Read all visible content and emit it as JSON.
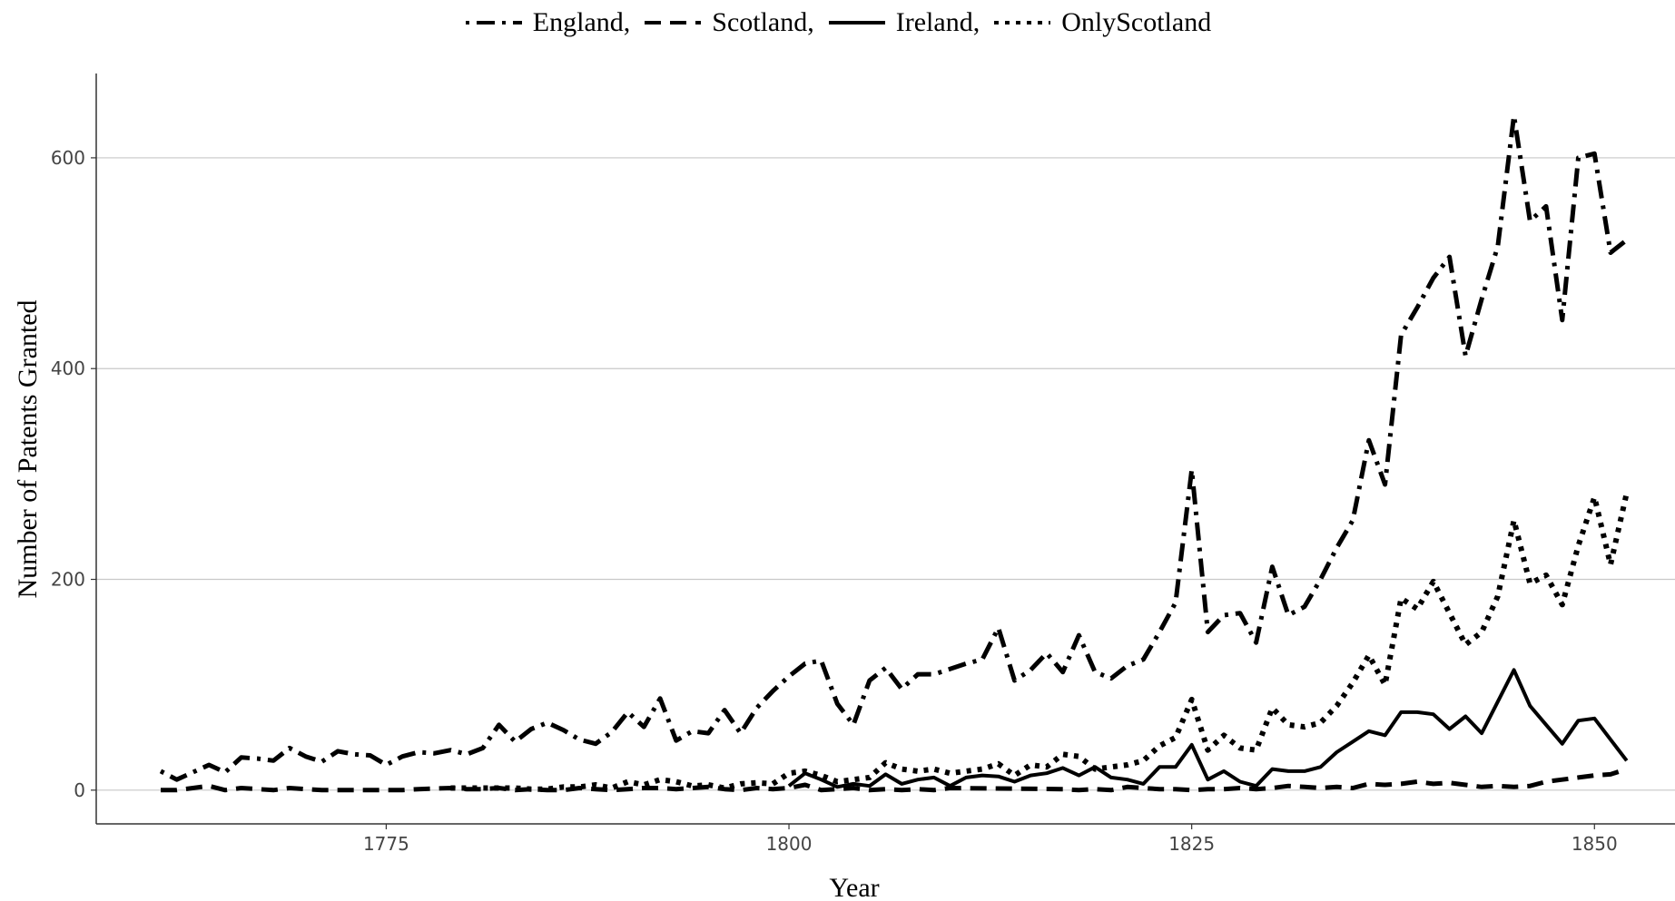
{
  "chart_data": {
    "type": "line",
    "xlabel": "Year",
    "ylabel": "Number of Patents Granted",
    "xlim": [
      1757,
      1855
    ],
    "ylim": [
      -32,
      680
    ],
    "xticks": [
      1775,
      1800,
      1825,
      1850
    ],
    "yticks": [
      0,
      200,
      400,
      600
    ],
    "grid": "horizontal major",
    "legend_position": "top",
    "series": [
      {
        "name": "England,",
        "dash": "dotdash",
        "points": [
          [
            1761,
            18
          ],
          [
            1762,
            10
          ],
          [
            1763,
            17
          ],
          [
            1764,
            24
          ],
          [
            1765,
            17
          ],
          [
            1766,
            31
          ],
          [
            1767,
            30
          ],
          [
            1768,
            28
          ],
          [
            1769,
            40
          ],
          [
            1770,
            32
          ],
          [
            1771,
            27
          ],
          [
            1772,
            37
          ],
          [
            1773,
            34
          ],
          [
            1774,
            33
          ],
          [
            1775,
            24
          ],
          [
            1776,
            32
          ],
          [
            1777,
            36
          ],
          [
            1778,
            35
          ],
          [
            1779,
            38
          ],
          [
            1780,
            34
          ],
          [
            1781,
            40
          ],
          [
            1782,
            62
          ],
          [
            1783,
            46
          ],
          [
            1784,
            58
          ],
          [
            1785,
            64
          ],
          [
            1786,
            57
          ],
          [
            1787,
            48
          ],
          [
            1788,
            44
          ],
          [
            1789,
            55
          ],
          [
            1790,
            74
          ],
          [
            1791,
            60
          ],
          [
            1792,
            87
          ],
          [
            1793,
            47
          ],
          [
            1794,
            56
          ],
          [
            1795,
            54
          ],
          [
            1796,
            76
          ],
          [
            1797,
            54
          ],
          [
            1798,
            78
          ],
          [
            1799,
            94
          ],
          [
            1800,
            108
          ],
          [
            1801,
            120
          ],
          [
            1802,
            123
          ],
          [
            1803,
            82
          ],
          [
            1804,
            62
          ],
          [
            1805,
            104
          ],
          [
            1806,
            116
          ],
          [
            1807,
            96
          ],
          [
            1808,
            110
          ],
          [
            1809,
            110
          ],
          [
            1810,
            115
          ],
          [
            1811,
            120
          ],
          [
            1812,
            124
          ],
          [
            1813,
            154
          ],
          [
            1814,
            104
          ],
          [
            1815,
            114
          ],
          [
            1816,
            130
          ],
          [
            1817,
            112
          ],
          [
            1818,
            147
          ],
          [
            1819,
            112
          ],
          [
            1820,
            106
          ],
          [
            1821,
            118
          ],
          [
            1822,
            124
          ],
          [
            1823,
            150
          ],
          [
            1824,
            178
          ],
          [
            1825,
            304
          ],
          [
            1826,
            150
          ],
          [
            1827,
            166
          ],
          [
            1828,
            168
          ],
          [
            1829,
            140
          ],
          [
            1830,
            212
          ],
          [
            1831,
            166
          ],
          [
            1832,
            174
          ],
          [
            1833,
            200
          ],
          [
            1834,
            230
          ],
          [
            1835,
            256
          ],
          [
            1836,
            332
          ],
          [
            1837,
            290
          ],
          [
            1838,
            432
          ],
          [
            1839,
            458
          ],
          [
            1840,
            486
          ],
          [
            1841,
            506
          ],
          [
            1842,
            412
          ],
          [
            1843,
            466
          ],
          [
            1844,
            516
          ],
          [
            1845,
            640
          ],
          [
            1846,
            540
          ],
          [
            1847,
            554
          ],
          [
            1848,
            446
          ],
          [
            1849,
            600
          ],
          [
            1850,
            604
          ],
          [
            1851,
            510
          ],
          [
            1852,
            522
          ]
        ]
      },
      {
        "name": "Scotland,",
        "dash": "dashed",
        "points": [
          [
            1761,
            0
          ],
          [
            1762,
            0
          ],
          [
            1764,
            4
          ],
          [
            1765,
            0
          ],
          [
            1766,
            2
          ],
          [
            1768,
            0
          ],
          [
            1769,
            2
          ],
          [
            1770,
            1
          ],
          [
            1771,
            0
          ],
          [
            1775,
            0
          ],
          [
            1776,
            0
          ],
          [
            1777,
            1
          ],
          [
            1779,
            2
          ],
          [
            1780,
            1
          ],
          [
            1781,
            1
          ],
          [
            1782,
            2
          ],
          [
            1783,
            0
          ],
          [
            1784,
            1
          ],
          [
            1785,
            0
          ],
          [
            1786,
            0
          ],
          [
            1787,
            2
          ],
          [
            1788,
            1
          ],
          [
            1789,
            0
          ],
          [
            1790,
            1
          ],
          [
            1791,
            2
          ],
          [
            1792,
            2
          ],
          [
            1793,
            1
          ],
          [
            1794,
            2
          ],
          [
            1795,
            3
          ],
          [
            1796,
            1
          ],
          [
            1797,
            0
          ],
          [
            1798,
            2
          ],
          [
            1799,
            1
          ],
          [
            1800,
            2
          ],
          [
            1801,
            5
          ],
          [
            1802,
            0
          ],
          [
            1803,
            1
          ],
          [
            1804,
            2
          ],
          [
            1805,
            0
          ],
          [
            1806,
            1
          ],
          [
            1807,
            0
          ],
          [
            1808,
            1
          ],
          [
            1809,
            0
          ],
          [
            1810,
            2
          ],
          [
            1817,
            1
          ],
          [
            1818,
            0
          ],
          [
            1819,
            1
          ],
          [
            1820,
            0
          ],
          [
            1821,
            3
          ],
          [
            1822,
            2
          ],
          [
            1823,
            1
          ],
          [
            1824,
            1
          ],
          [
            1825,
            0
          ],
          [
            1826,
            1
          ],
          [
            1827,
            1
          ],
          [
            1828,
            2
          ],
          [
            1829,
            1
          ],
          [
            1830,
            2
          ],
          [
            1831,
            4
          ],
          [
            1832,
            3
          ],
          [
            1833,
            2
          ],
          [
            1834,
            3
          ],
          [
            1835,
            2
          ],
          [
            1836,
            6
          ],
          [
            1837,
            5
          ],
          [
            1838,
            6
          ],
          [
            1839,
            8
          ],
          [
            1840,
            6
          ],
          [
            1841,
            7
          ],
          [
            1842,
            5
          ],
          [
            1843,
            3
          ],
          [
            1844,
            4
          ],
          [
            1845,
            3
          ],
          [
            1846,
            4
          ],
          [
            1847,
            8
          ],
          [
            1848,
            10
          ],
          [
            1849,
            12
          ],
          [
            1850,
            14
          ],
          [
            1851,
            15
          ],
          [
            1852,
            20
          ]
        ]
      },
      {
        "name": "Ireland,",
        "dash": "solid",
        "points": [
          [
            1800,
            4
          ],
          [
            1801,
            16
          ],
          [
            1802,
            10
          ],
          [
            1803,
            3
          ],
          [
            1804,
            6
          ],
          [
            1805,
            4
          ],
          [
            1806,
            15
          ],
          [
            1807,
            6
          ],
          [
            1808,
            10
          ],
          [
            1809,
            12
          ],
          [
            1810,
            4
          ],
          [
            1811,
            12
          ],
          [
            1812,
            14
          ],
          [
            1813,
            13
          ],
          [
            1814,
            8
          ],
          [
            1815,
            14
          ],
          [
            1816,
            16
          ],
          [
            1817,
            21
          ],
          [
            1818,
            14
          ],
          [
            1819,
            22
          ],
          [
            1820,
            12
          ],
          [
            1821,
            10
          ],
          [
            1822,
            6
          ],
          [
            1823,
            22
          ],
          [
            1824,
            22
          ],
          [
            1825,
            43
          ],
          [
            1826,
            10
          ],
          [
            1827,
            18
          ],
          [
            1828,
            8
          ],
          [
            1829,
            4
          ],
          [
            1830,
            20
          ],
          [
            1831,
            18
          ],
          [
            1832,
            18
          ],
          [
            1833,
            22
          ],
          [
            1834,
            36
          ],
          [
            1835,
            46
          ],
          [
            1836,
            56
          ],
          [
            1837,
            52
          ],
          [
            1838,
            74
          ],
          [
            1839,
            74
          ],
          [
            1840,
            72
          ],
          [
            1841,
            58
          ],
          [
            1842,
            70
          ],
          [
            1843,
            54
          ],
          [
            1844,
            84
          ],
          [
            1845,
            114
          ],
          [
            1846,
            80
          ],
          [
            1847,
            62
          ],
          [
            1848,
            44
          ],
          [
            1849,
            66
          ],
          [
            1850,
            68
          ],
          [
            1851,
            48
          ],
          [
            1852,
            28
          ]
        ]
      },
      {
        "name": "OnlyScotland",
        "dash": "dotted",
        "points": [
          [
            1779,
            2
          ],
          [
            1780,
            2
          ],
          [
            1781,
            2
          ],
          [
            1782,
            2
          ],
          [
            1783,
            2
          ],
          [
            1784,
            1
          ],
          [
            1785,
            1
          ],
          [
            1786,
            3
          ],
          [
            1787,
            3
          ],
          [
            1788,
            5
          ],
          [
            1789,
            2
          ],
          [
            1790,
            8
          ],
          [
            1791,
            5
          ],
          [
            1792,
            10
          ],
          [
            1793,
            8
          ],
          [
            1794,
            4
          ],
          [
            1795,
            5
          ],
          [
            1796,
            2
          ],
          [
            1797,
            6
          ],
          [
            1798,
            7
          ],
          [
            1799,
            6
          ],
          [
            1800,
            16
          ],
          [
            1801,
            18
          ],
          [
            1802,
            14
          ],
          [
            1803,
            8
          ],
          [
            1804,
            10
          ],
          [
            1805,
            12
          ],
          [
            1806,
            26
          ],
          [
            1807,
            20
          ],
          [
            1808,
            18
          ],
          [
            1809,
            20
          ],
          [
            1810,
            16
          ],
          [
            1811,
            18
          ],
          [
            1812,
            20
          ],
          [
            1813,
            25
          ],
          [
            1814,
            14
          ],
          [
            1815,
            24
          ],
          [
            1816,
            22
          ],
          [
            1817,
            34
          ],
          [
            1818,
            32
          ],
          [
            1819,
            20
          ],
          [
            1820,
            22
          ],
          [
            1821,
            24
          ],
          [
            1822,
            28
          ],
          [
            1823,
            42
          ],
          [
            1824,
            50
          ],
          [
            1825,
            86
          ],
          [
            1826,
            38
          ],
          [
            1827,
            52
          ],
          [
            1828,
            40
          ],
          [
            1829,
            38
          ],
          [
            1830,
            78
          ],
          [
            1831,
            62
          ],
          [
            1832,
            60
          ],
          [
            1833,
            64
          ],
          [
            1834,
            80
          ],
          [
            1835,
            102
          ],
          [
            1836,
            128
          ],
          [
            1837,
            100
          ],
          [
            1838,
            182
          ],
          [
            1839,
            172
          ],
          [
            1840,
            198
          ],
          [
            1841,
            168
          ],
          [
            1842,
            138
          ],
          [
            1843,
            150
          ],
          [
            1844,
            184
          ],
          [
            1845,
            256
          ],
          [
            1846,
            196
          ],
          [
            1847,
            204
          ],
          [
            1848,
            176
          ],
          [
            1849,
            232
          ],
          [
            1850,
            278
          ],
          [
            1851,
            214
          ],
          [
            1852,
            282
          ]
        ]
      }
    ]
  }
}
